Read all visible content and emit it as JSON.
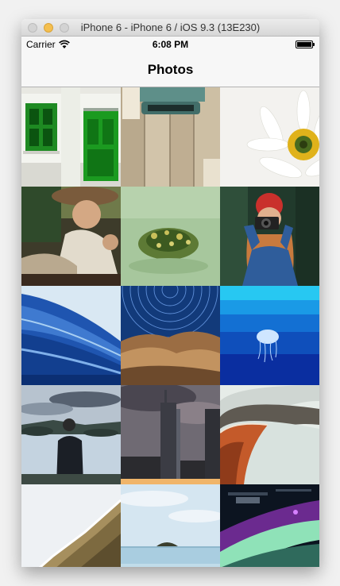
{
  "window": {
    "title": "iPhone 6 - iPhone 6 / iOS 9.3 (13E230)"
  },
  "status_bar": {
    "carrier": "Carrier",
    "time": "6:08 PM",
    "battery_level": 1.0
  },
  "navigation": {
    "title": "Photos"
  },
  "photos": [
    {
      "subject": "white house facade with green door and window"
    },
    {
      "subject": "typewriter on wooden planks"
    },
    {
      "subject": "white daisy flower"
    },
    {
      "subject": "woman driving a vintage car"
    },
    {
      "subject": "frog in green pond water"
    },
    {
      "subject": "red-haired woman with camera"
    },
    {
      "subject": "blue ocean wave"
    },
    {
      "subject": "star trails over rocks"
    },
    {
      "subject": "jellyfish in deep blue water"
    },
    {
      "subject": "man standing by a mountain lake"
    },
    {
      "subject": "skyscraper under cloudy sky"
    },
    {
      "subject": "curved stadium roof"
    },
    {
      "subject": "snowy forested hillside"
    },
    {
      "subject": "small island on calm sea"
    },
    {
      "subject": "space station with aurora"
    }
  ]
}
